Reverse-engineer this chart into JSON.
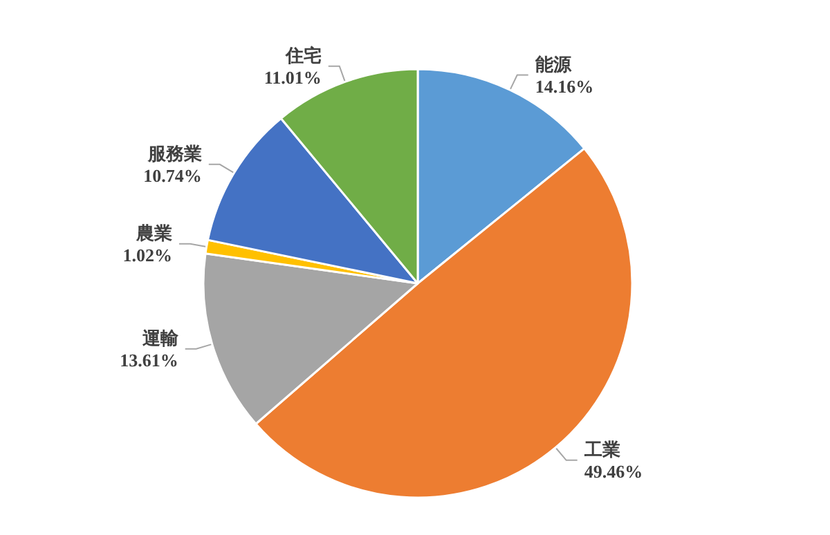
{
  "chart_data": {
    "type": "pie",
    "categories": [
      "能源",
      "工業",
      "運輸",
      "農業",
      "服務業",
      "住宅"
    ],
    "values": [
      14.16,
      49.46,
      13.61,
      1.02,
      10.74,
      11.01
    ],
    "value_labels": [
      "14.16%",
      "49.46%",
      "13.61%",
      "1.02%",
      "10.74%",
      "11.01%"
    ],
    "colors": [
      "#5b9bd5",
      "#ed7d31",
      "#a5a5a5",
      "#ffc000",
      "#4472c4",
      "#70ad47"
    ]
  }
}
